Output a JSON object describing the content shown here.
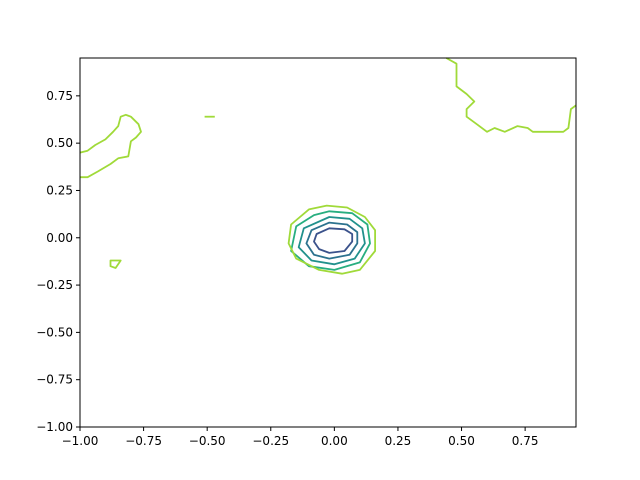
{
  "chart_data": {
    "type": "contour",
    "title": "",
    "xlabel": "",
    "ylabel": "",
    "xlim": [
      -1.0,
      0.95
    ],
    "ylim": [
      -1.0,
      0.95
    ],
    "grid": false,
    "legend": "none",
    "x_ticks": [
      -1.0,
      -0.75,
      -0.5,
      -0.25,
      0.0,
      0.25,
      0.5,
      0.75
    ],
    "x_tick_labels": [
      "−1.00",
      "−0.75",
      "−0.50",
      "−0.25",
      "0.00",
      "0.25",
      "0.50",
      "0.75"
    ],
    "y_ticks": [
      -1.0,
      -0.75,
      -0.5,
      -0.25,
      0.0,
      0.25,
      0.5,
      0.75
    ],
    "y_tick_labels": [
      "−1.00",
      "−0.75",
      "−0.50",
      "−0.25",
      "0.00",
      "0.25",
      "0.50",
      "0.75"
    ],
    "contours": [
      {
        "level_index": 1,
        "color": "#3b528b",
        "closed": true,
        "points": [
          [
            -0.02,
            0.05
          ],
          [
            0.04,
            0.045
          ],
          [
            0.07,
            0.02
          ],
          [
            0.07,
            -0.02
          ],
          [
            0.04,
            -0.07
          ],
          [
            -0.02,
            -0.08
          ],
          [
            -0.06,
            -0.06
          ],
          [
            -0.08,
            -0.02
          ],
          [
            -0.07,
            0.02
          ]
        ]
      },
      {
        "level_index": 2,
        "color": "#2c728e",
        "closed": true,
        "points": [
          [
            -0.02,
            0.08
          ],
          [
            0.05,
            0.07
          ],
          [
            0.09,
            0.03
          ],
          [
            0.09,
            -0.03
          ],
          [
            0.06,
            -0.09
          ],
          [
            -0.02,
            -0.11
          ],
          [
            -0.08,
            -0.09
          ],
          [
            -0.11,
            -0.03
          ],
          [
            -0.09,
            0.04
          ]
        ]
      },
      {
        "level_index": 3,
        "color": "#21918c",
        "closed": true,
        "points": [
          [
            -0.02,
            0.11
          ],
          [
            0.06,
            0.1
          ],
          [
            0.11,
            0.05
          ],
          [
            0.12,
            -0.03
          ],
          [
            0.08,
            -0.11
          ],
          [
            0.0,
            -0.14
          ],
          [
            -0.09,
            -0.12
          ],
          [
            -0.14,
            -0.05
          ],
          [
            -0.12,
            0.05
          ]
        ]
      },
      {
        "level_index": 4,
        "color": "#28ae80",
        "closed": true,
        "points": [
          [
            -0.02,
            0.14
          ],
          [
            0.07,
            0.13
          ],
          [
            0.13,
            0.07
          ],
          [
            0.14,
            -0.03
          ],
          [
            0.1,
            -0.13
          ],
          [
            0.0,
            -0.17
          ],
          [
            -0.1,
            -0.15
          ],
          [
            -0.17,
            -0.07
          ],
          [
            -0.15,
            0.06
          ],
          [
            -0.08,
            0.12
          ]
        ]
      },
      {
        "level_index": 5,
        "color": "#a0da39",
        "closed": true,
        "points": [
          [
            -0.03,
            0.17
          ],
          [
            0.05,
            0.16
          ],
          [
            0.12,
            0.11
          ],
          [
            0.16,
            0.04
          ],
          [
            0.16,
            -0.07
          ],
          [
            0.1,
            -0.17
          ],
          [
            0.03,
            -0.19
          ],
          [
            -0.06,
            -0.17
          ],
          [
            -0.15,
            -0.11
          ],
          [
            -0.18,
            -0.03
          ],
          [
            -0.17,
            0.07
          ],
          [
            -0.1,
            0.15
          ]
        ]
      },
      {
        "level_index": 5,
        "color": "#a0da39",
        "closed": false,
        "points": [
          [
            -1.0,
            0.32
          ],
          [
            -0.97,
            0.32
          ],
          [
            -0.93,
            0.35
          ],
          [
            -0.88,
            0.39
          ],
          [
            -0.85,
            0.42
          ],
          [
            -0.81,
            0.43
          ],
          [
            -0.8,
            0.51
          ],
          [
            -0.78,
            0.53
          ],
          [
            -0.76,
            0.56
          ],
          [
            -0.77,
            0.6
          ],
          [
            -0.8,
            0.64
          ],
          [
            -0.82,
            0.65
          ],
          [
            -0.84,
            0.64
          ],
          [
            -0.85,
            0.59
          ],
          [
            -0.87,
            0.56
          ],
          [
            -0.9,
            0.52
          ],
          [
            -0.94,
            0.49
          ],
          [
            -0.97,
            0.46
          ],
          [
            -1.0,
            0.45
          ]
        ]
      },
      {
        "level_index": 5,
        "color": "#a0da39",
        "closed": false,
        "points": [
          [
            0.44,
            0.95
          ],
          [
            0.48,
            0.92
          ],
          [
            0.48,
            0.8
          ],
          [
            0.52,
            0.76
          ],
          [
            0.55,
            0.72
          ],
          [
            0.52,
            0.68
          ],
          [
            0.52,
            0.64
          ],
          [
            0.56,
            0.6
          ],
          [
            0.6,
            0.56
          ],
          [
            0.63,
            0.58
          ],
          [
            0.67,
            0.56
          ],
          [
            0.72,
            0.59
          ],
          [
            0.76,
            0.58
          ],
          [
            0.78,
            0.56
          ],
          [
            0.85,
            0.56
          ],
          [
            0.9,
            0.56
          ],
          [
            0.92,
            0.58
          ],
          [
            0.93,
            0.68
          ],
          [
            0.95,
            0.7
          ]
        ]
      },
      {
        "level_index": 5,
        "color": "#a0da39",
        "closed": true,
        "points": [
          [
            -0.88,
            -0.12
          ],
          [
            -0.84,
            -0.12
          ],
          [
            -0.86,
            -0.16
          ],
          [
            -0.88,
            -0.15
          ]
        ]
      },
      {
        "level_index": 5,
        "color": "#a0da39",
        "closed": false,
        "points": [
          [
            -0.51,
            0.64
          ],
          [
            -0.47,
            0.64
          ]
        ]
      }
    ]
  }
}
